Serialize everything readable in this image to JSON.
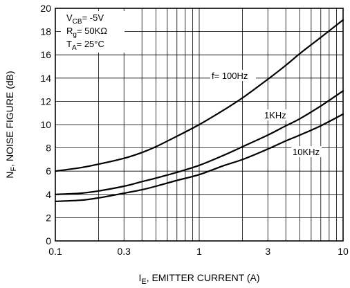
{
  "chart_data": {
    "type": "line",
    "xscale": "log",
    "xlim": [
      0.1,
      10
    ],
    "ylim": [
      0,
      20
    ],
    "xticks": [
      {
        "value": 0.1,
        "label": "0.1"
      },
      {
        "value": 0.3,
        "label": "0.3"
      },
      {
        "value": 1,
        "label": "1"
      },
      {
        "value": 3,
        "label": "3"
      },
      {
        "value": 10,
        "label": "10"
      }
    ],
    "yticks": [
      0,
      2,
      4,
      6,
      8,
      10,
      12,
      14,
      16,
      18,
      20
    ],
    "grid": true,
    "xlabel": {
      "main": "I",
      "sub": "E",
      "rest": ", EMITTER CURRENT (A)"
    },
    "ylabel": {
      "main": "N",
      "sub": "F",
      "rest": ", NOISE FIGURE (dB)"
    },
    "conditions": [
      {
        "main": "V",
        "sub": "CB",
        "rest": "= -5V"
      },
      {
        "main": "R",
        "sub": "g",
        "rest": "= 50KΩ"
      },
      {
        "main": "T",
        "sub": "A",
        "rest": "= 25°C"
      }
    ],
    "series": [
      {
        "name": "f= 100Hz",
        "x": [
          0.1,
          0.15,
          0.2,
          0.3,
          0.4,
          0.5,
          0.7,
          1,
          1.5,
          2,
          3,
          4,
          5,
          7,
          10
        ],
        "y": [
          6.0,
          6.3,
          6.6,
          7.1,
          7.6,
          8.1,
          9.0,
          10.0,
          11.3,
          12.3,
          13.9,
          15.1,
          16.1,
          17.5,
          19.0
        ]
      },
      {
        "name": "1KHz",
        "x": [
          0.1,
          0.15,
          0.2,
          0.3,
          0.4,
          0.5,
          0.7,
          1,
          1.5,
          2,
          3,
          4,
          5,
          7,
          10
        ],
        "y": [
          4.0,
          4.1,
          4.3,
          4.7,
          5.1,
          5.4,
          5.9,
          6.5,
          7.4,
          8.1,
          9.1,
          9.9,
          10.5,
          11.6,
          12.9
        ]
      },
      {
        "name": "10KHz",
        "x": [
          0.1,
          0.15,
          0.2,
          0.3,
          0.4,
          0.5,
          0.7,
          1,
          1.5,
          2,
          3,
          4,
          5,
          7,
          10
        ],
        "y": [
          3.4,
          3.5,
          3.7,
          4.1,
          4.4,
          4.7,
          5.2,
          5.7,
          6.5,
          7.0,
          7.9,
          8.6,
          9.1,
          9.9,
          10.9
        ]
      }
    ]
  }
}
